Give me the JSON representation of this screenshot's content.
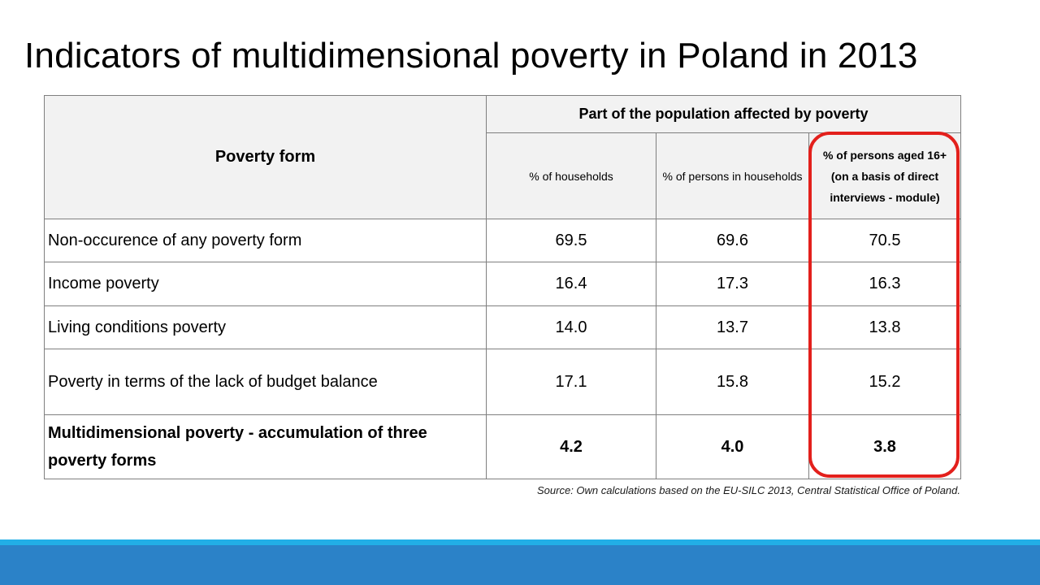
{
  "slide": {
    "title": "Indicators of multidimensional poverty in Poland in 2013",
    "source": "Source: Own calculations based on the EU-SILC 2013, Central Statistical Office of Poland.",
    "highlight_color": "#e3201c",
    "bar_colors": {
      "thin": "#22aee6",
      "main": "#2b82c8"
    }
  },
  "table": {
    "row_header": "Poverty form",
    "group_header": "Part of the population affected by poverty",
    "columns": [
      "% of households",
      "% of persons in households",
      "% of persons aged 16+ (on a basis of direct interviews - module)"
    ],
    "rows": [
      {
        "label": "Non-occurence of any poverty form",
        "values": [
          "69.5",
          "69.6",
          "70.5"
        ]
      },
      {
        "label": "Income poverty",
        "values": [
          "16.4",
          "17.3",
          "16.3"
        ]
      },
      {
        "label": "Living conditions poverty",
        "values": [
          "14.0",
          "13.7",
          "13.8"
        ]
      },
      {
        "label": "Poverty in terms of the lack of budget balance",
        "values": [
          "17.1",
          "15.8",
          "15.2"
        ]
      },
      {
        "label": "Multidimensional poverty - accumulation of three poverty forms",
        "values": [
          "4.2",
          "4.0",
          "3.8"
        ]
      }
    ]
  }
}
